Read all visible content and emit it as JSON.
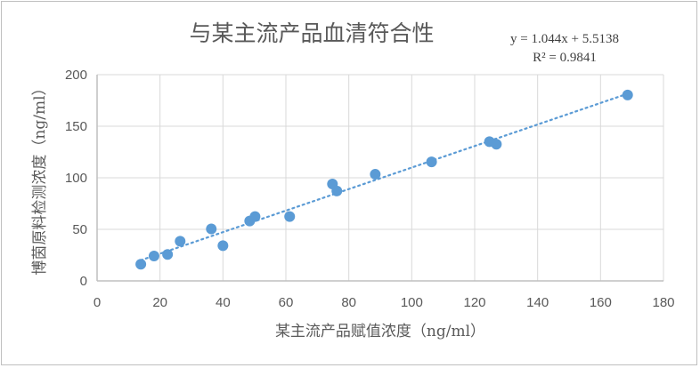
{
  "chart_data": {
    "type": "scatter",
    "title": "与某主流产品血清符合性",
    "xlabel": "某主流产品赋值浓度（ng/ml）",
    "ylabel": "博茵原料检测浓度（ng/ml）",
    "xlim": [
      0,
      180
    ],
    "ylim": [
      0,
      200
    ],
    "xticks": [
      "0",
      "20",
      "40",
      "60",
      "80",
      "100",
      "120",
      "140",
      "160",
      "180"
    ],
    "yticks": [
      "0",
      "50",
      "100",
      "150",
      "200"
    ],
    "grid": true,
    "marker_color": "#5b9bd5",
    "points": [
      {
        "x": 13.9,
        "y": 16.2
      },
      {
        "x": 18.1,
        "y": 24.1
      },
      {
        "x": 22.4,
        "y": 25.6
      },
      {
        "x": 26.4,
        "y": 38.5
      },
      {
        "x": 36.3,
        "y": 50.4
      },
      {
        "x": 40.0,
        "y": 34.2
      },
      {
        "x": 48.5,
        "y": 58.1
      },
      {
        "x": 50.2,
        "y": 62.4
      },
      {
        "x": 61.2,
        "y": 62.4
      },
      {
        "x": 74.8,
        "y": 94.0
      },
      {
        "x": 76.2,
        "y": 87.2
      },
      {
        "x": 88.4,
        "y": 103.4
      },
      {
        "x": 106.3,
        "y": 115.4
      },
      {
        "x": 124.7,
        "y": 135.0
      },
      {
        "x": 126.9,
        "y": 132.5
      },
      {
        "x": 168.6,
        "y": 180.3
      }
    ],
    "trendline": {
      "type": "linear",
      "slope": 1.044,
      "intercept": 5.5138,
      "style": "dotted"
    },
    "annotations": {
      "equation": "y = 1.044x + 5.5138",
      "r2": "R² = 0.9841"
    }
  }
}
